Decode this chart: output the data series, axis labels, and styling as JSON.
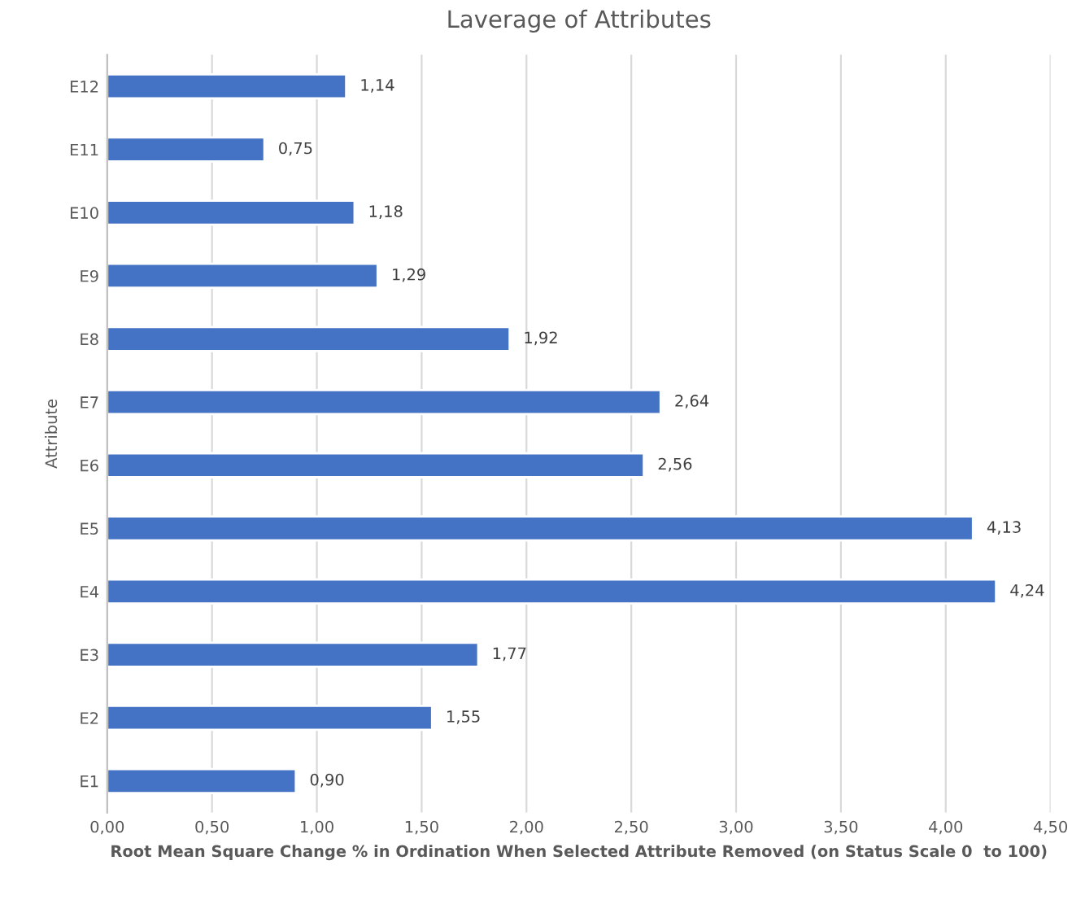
{
  "chart_data": {
    "type": "bar",
    "orientation": "horizontal",
    "title": "Laverage of Attributes",
    "xlabel": "Root Mean Square Change % in Ordination When Selected Attribute Removed (on Status Scale 0  to 100)",
    "ylabel": "Attribute",
    "categories": [
      "E12",
      "E11",
      "E10",
      "E9",
      "E8",
      "E7",
      "E6",
      "E5",
      "E4",
      "E3",
      "E2",
      "E1"
    ],
    "values": [
      1.14,
      0.75,
      1.18,
      1.29,
      1.92,
      2.64,
      2.56,
      4.13,
      4.24,
      1.77,
      1.55,
      0.9
    ],
    "value_labels": [
      "1,14",
      "0,75",
      "1,18",
      "1,29",
      "1,92",
      "2,64",
      "2,56",
      "4,13",
      "4,24",
      "1,77",
      "1,55",
      "0,90"
    ],
    "color": "#4472c4",
    "xlim": [
      0,
      4.5
    ],
    "xticks": [
      {
        "value": 0,
        "label": "0,00"
      },
      {
        "value": 0.5,
        "label": "0,50"
      },
      {
        "value": 1,
        "label": "1,00"
      },
      {
        "value": 1.5,
        "label": "1,50"
      },
      {
        "value": 2,
        "label": "2,00"
      },
      {
        "value": 2.5,
        "label": "2,50"
      },
      {
        "value": 3,
        "label": "3,00"
      },
      {
        "value": 3.5,
        "label": "3,50"
      },
      {
        "value": 4,
        "label": "4,00"
      },
      {
        "value": 4.5,
        "label": "4,50"
      }
    ],
    "grid": "x"
  }
}
